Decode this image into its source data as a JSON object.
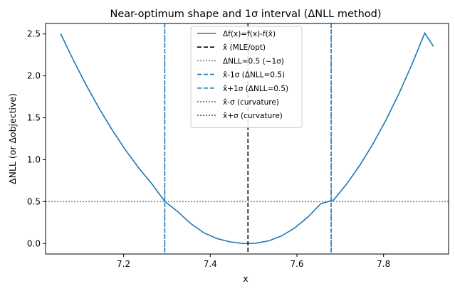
{
  "chart_data": {
    "type": "line",
    "title": "Near-optimum shape and 1σ interval (ΔNLL method)",
    "xlabel": "x",
    "ylabel": "ΔNLL (or Δobjective)",
    "xlim": [
      7.02,
      7.95
    ],
    "ylim": [
      -0.125,
      2.625
    ],
    "xticks": [
      7.2,
      7.4,
      7.6,
      7.8
    ],
    "xtick_labels": [
      "7.2",
      "7.4",
      "7.6",
      "7.8"
    ],
    "yticks": [
      0.0,
      0.5,
      1.0,
      1.5,
      2.0,
      2.5
    ],
    "ytick_labels": [
      "0.0",
      "0.5",
      "1.0",
      "1.5",
      "2.0",
      "2.5"
    ],
    "grid": false,
    "legend_position": "top-center",
    "colors": {
      "curve": "#1f77b4",
      "mle": "#000000",
      "threshold": "#808080",
      "sigma": "#1f77b4"
    },
    "curve": {
      "x": [
        7.055,
        7.085,
        7.115,
        7.145,
        7.175,
        7.205,
        7.235,
        7.265,
        7.295,
        7.325,
        7.355,
        7.385,
        7.415,
        7.445,
        7.475,
        7.487,
        7.505,
        7.535,
        7.565,
        7.595,
        7.625,
        7.655,
        7.685,
        7.715,
        7.745,
        7.775,
        7.805,
        7.835,
        7.865,
        7.895,
        7.915
      ],
      "y": [
        2.5,
        2.178,
        1.878,
        1.6,
        1.345,
        1.112,
        0.902,
        0.713,
        0.503,
        0.38,
        0.237,
        0.129,
        0.06,
        0.02,
        0.001,
        0.0,
        0.004,
        0.032,
        0.092,
        0.186,
        0.314,
        0.475,
        0.52,
        0.712,
        0.932,
        1.185,
        1.469,
        1.784,
        2.132,
        2.51,
        2.352
      ]
    },
    "mle_x": 7.487,
    "lower_1sigma_x": 7.295,
    "upper_1sigma_x": 7.679,
    "curvature_minus_x": 7.295,
    "curvature_plus_x": 7.679,
    "threshold_y": 0.5,
    "legend": [
      {
        "label": "Δf(x)=f(x)-f(x̂)",
        "style": "solid",
        "color": "#1f77b4"
      },
      {
        "label": "x̂ (MLE/opt)",
        "style": "dashed",
        "color": "#000000"
      },
      {
        "label": "ΔNLL=0.5 (~1σ)",
        "style": "dotted",
        "color": "#808080"
      },
      {
        "label": "x̂-1σ (ΔNLL=0.5)",
        "style": "dashed",
        "color": "#1f77b4"
      },
      {
        "label": "x̂+1σ (ΔNLL=0.5)",
        "style": "dashed",
        "color": "#1f77b4"
      },
      {
        "label": "x̂-σ (curvature)",
        "style": "dotted",
        "color": "#1f77b4"
      },
      {
        "label": "x̂+σ (curvature)",
        "style": "dotted",
        "color": "#1f77b4"
      }
    ]
  }
}
